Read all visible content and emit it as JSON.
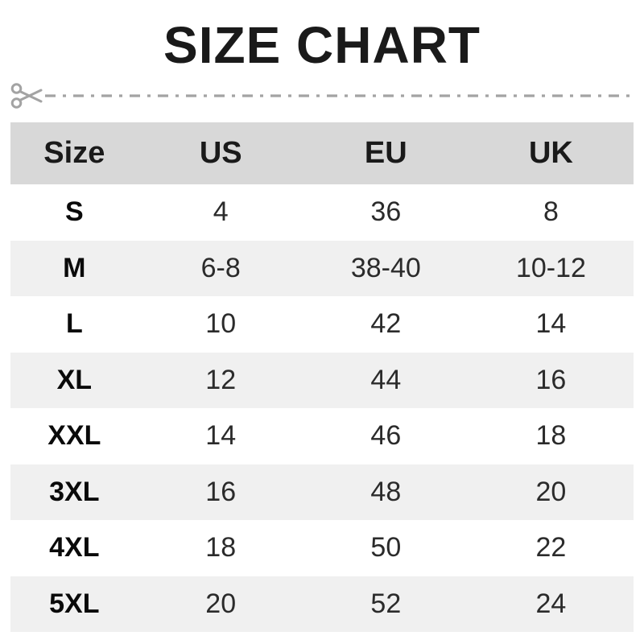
{
  "page_title": "SIZE CHART",
  "cut_line": {
    "icon": "scissors-icon",
    "style": "dash-dot"
  },
  "colors": {
    "title_text": "#1a1a1a",
    "body_text": "#2b2b2b",
    "header_bg": "#d8d8d8",
    "alt_row_bg": "#f0f0f0",
    "row_bg": "#ffffff",
    "cut_line": "#a3a3a3"
  },
  "chart_data": {
    "type": "table",
    "title": "SIZE CHART",
    "columns": [
      "Size",
      "US",
      "EU",
      "UK"
    ],
    "rows": [
      [
        "S",
        "4",
        "36",
        "8"
      ],
      [
        "M",
        "6-8",
        "38-40",
        "10-12"
      ],
      [
        "L",
        "10",
        "42",
        "14"
      ],
      [
        "XL",
        "12",
        "44",
        "16"
      ],
      [
        "XXL",
        "14",
        "46",
        "18"
      ],
      [
        "3XL",
        "16",
        "48",
        "20"
      ],
      [
        "4XL",
        "18",
        "50",
        "22"
      ],
      [
        "5XL",
        "20",
        "52",
        "24"
      ]
    ],
    "layout": {
      "header_shaded": true,
      "alternating_row_shading": true,
      "gridlines": false
    }
  }
}
